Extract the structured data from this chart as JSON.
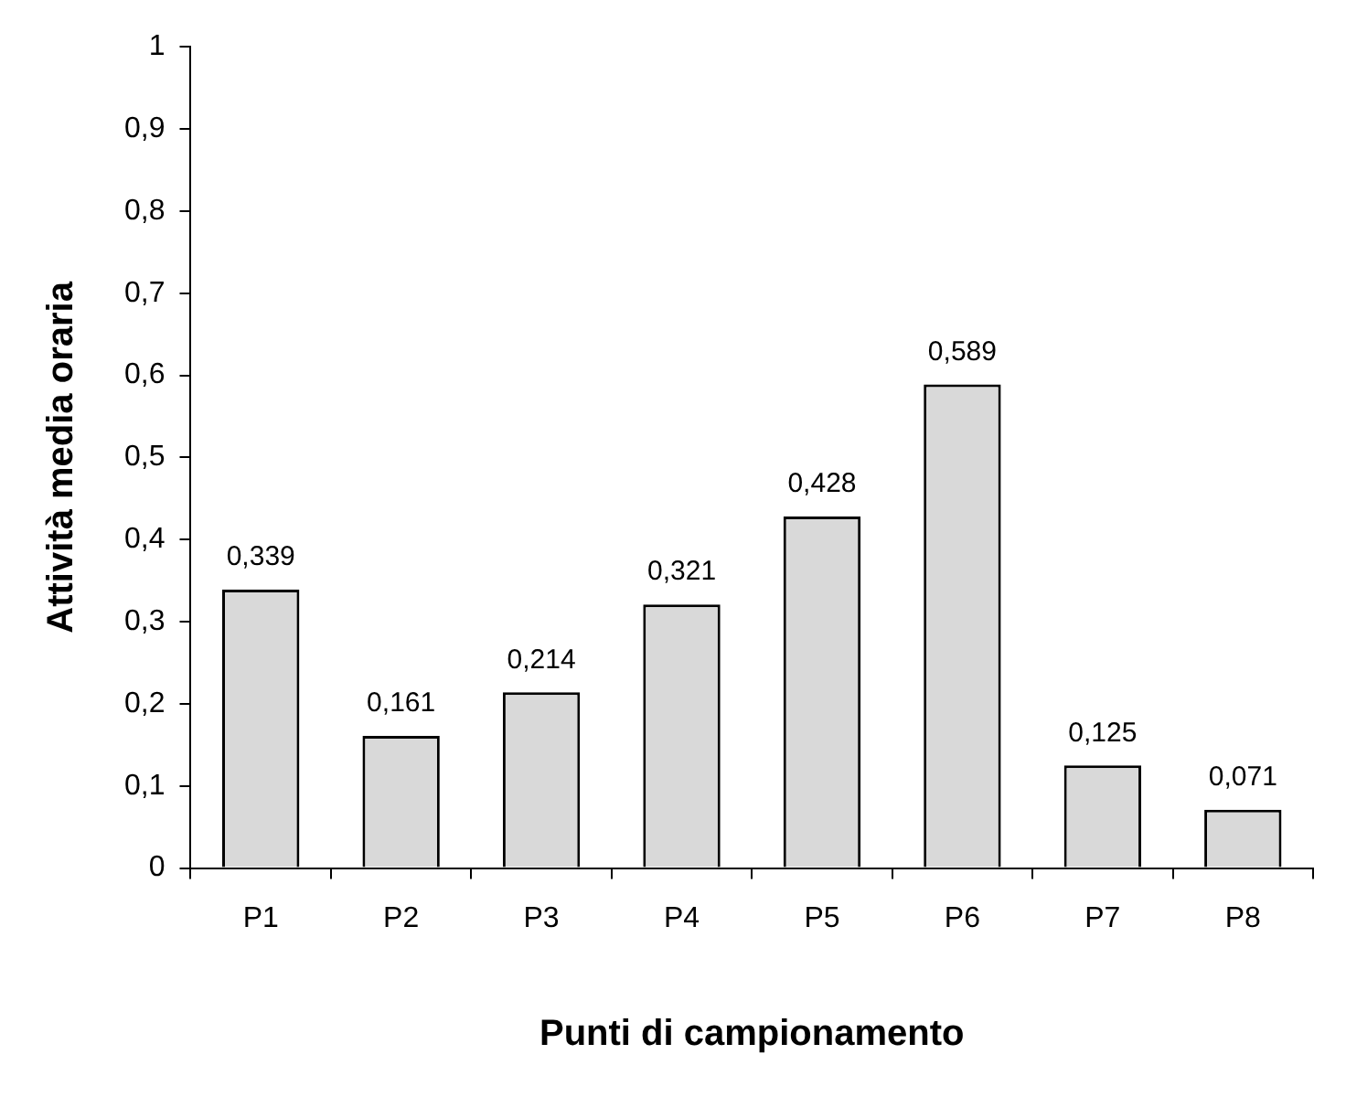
{
  "chart_data": {
    "type": "bar",
    "xlabel": "Punti di campionamento",
    "ylabel": "Attività media oraria",
    "categories": [
      "P1",
      "P2",
      "P3",
      "P4",
      "P5",
      "P6",
      "P7",
      "P8"
    ],
    "values": [
      0.339,
      0.161,
      0.214,
      0.321,
      0.428,
      0.589,
      0.125,
      0.071
    ],
    "value_labels": [
      "0,339",
      "0,161",
      "0,214",
      "0,321",
      "0,428",
      "0,589",
      "0,125",
      "0,071"
    ],
    "color": "#d9d9d9",
    "ylim": [
      0,
      1
    ],
    "yticks": [
      0,
      {
        "value": 0.1,
        "label": "0,1"
      },
      {
        "value": 0.2,
        "label": "0,2"
      },
      {
        "value": 0.3,
        "label": "0,3"
      },
      {
        "value": 0.4,
        "label": "0,4"
      },
      {
        "value": 0.5,
        "label": "0,5"
      },
      {
        "value": 0.6,
        "label": "0,6"
      },
      {
        "value": 0.7,
        "label": "0,7"
      },
      {
        "value": 0.8,
        "label": "0,8"
      },
      {
        "value": 0.9,
        "label": "0,9"
      },
      1
    ],
    "grid": false,
    "legend": false
  }
}
